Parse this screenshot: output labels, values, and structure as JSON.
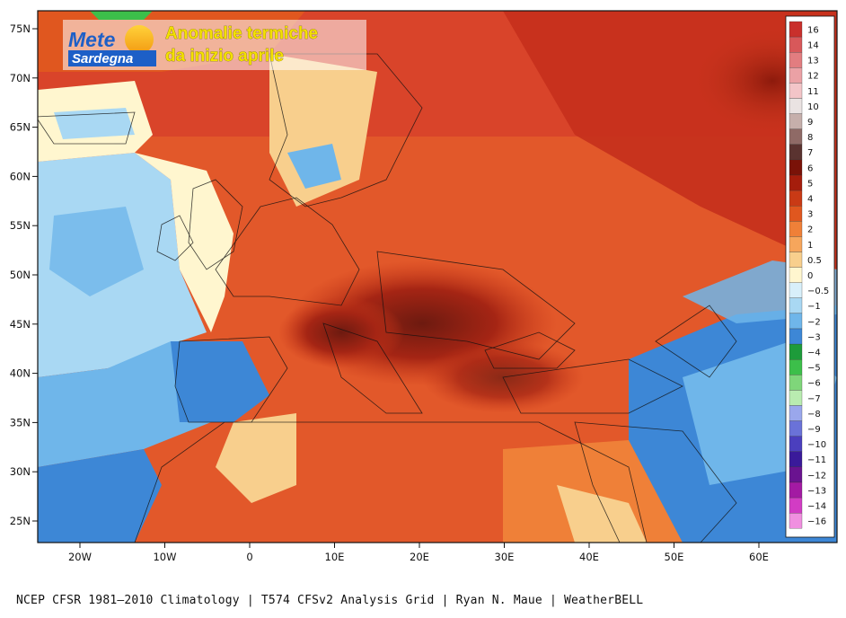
{
  "header": {
    "logo_line1": "Mete",
    "logo_line2": "Sardegna",
    "title_line1": "Anomalie termiche",
    "title_line2": "da inizio aprile"
  },
  "map": {
    "lat_labels": [
      "75N",
      "70N",
      "65N",
      "60N",
      "55N",
      "50N",
      "45N",
      "40N",
      "35N",
      "30N",
      "25N"
    ],
    "lon_labels": [
      "20W",
      "10W",
      "0",
      "10E",
      "20E",
      "30E",
      "40E",
      "50E",
      "60E"
    ]
  },
  "legend": {
    "labels": [
      "16",
      "14",
      "13",
      "12",
      "11",
      "10",
      "9",
      "8",
      "7",
      "6",
      "5",
      "4",
      "3",
      "2",
      "1",
      "0.5",
      "0",
      "−0.5",
      "−1",
      "−2",
      "−3",
      "−4",
      "−5",
      "−6",
      "−7",
      "−8",
      "−9",
      "−10",
      "−11",
      "−12",
      "−13",
      "−14",
      "−16"
    ],
    "colors": [
      "#c9302c",
      "#d8585a",
      "#e27d80",
      "#eba1a5",
      "#f3c5c8",
      "#eae3e2",
      "#c6afab",
      "#8f6a66",
      "#5a3330",
      "#7a1208",
      "#a51d0c",
      "#c93a15",
      "#e0571f",
      "#ef8038",
      "#f6a65c",
      "#f8cf8d",
      "#fff6cf",
      "#d8effa",
      "#a9d8f3",
      "#6fb6ea",
      "#3d87d6",
      "#1d9b3a",
      "#3cbf4a",
      "#7fd67a",
      "#b9ecb0",
      "#9aa7ec",
      "#6a72d8",
      "#4b3fbe",
      "#3a1a9a",
      "#6a1390",
      "#a31aa3",
      "#d23cc4",
      "#f08fe0"
    ]
  },
  "footer": {
    "credit": "NCEP CFSR 1981–2010 Climatology | T574 CFSv2 Analysis Grid | Ryan N. Maue | WeatherBELL"
  }
}
